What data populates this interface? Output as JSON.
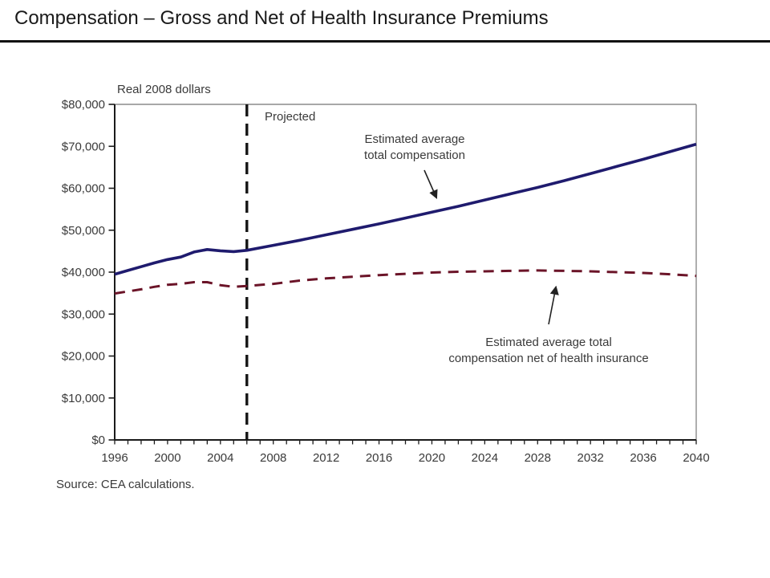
{
  "slide": {
    "title": "Compensation – Gross and Net of Health Insurance Premiums",
    "source_note": "Source: CEA calculations."
  },
  "chart_data": {
    "type": "line",
    "title": "Compensation – Gross and Net of Health Insurance Premiums",
    "unit_label": "Real 2008 dollars",
    "projected_label": "Projected",
    "projected_start_year": 2006,
    "x_range": [
      1996,
      2040
    ],
    "ylim": [
      0,
      80000
    ],
    "grid": false,
    "legend_position": "none",
    "x_tick_label_years": [
      1996,
      2000,
      2004,
      2008,
      2012,
      2016,
      2020,
      2024,
      2028,
      2032,
      2036,
      2040
    ],
    "y_ticks": [
      {
        "value": 0,
        "label": "$0"
      },
      {
        "value": 10000,
        "label": "$10,000"
      },
      {
        "value": 20000,
        "label": "$20,000"
      },
      {
        "value": 30000,
        "label": "$30,000"
      },
      {
        "value": 40000,
        "label": "$40,000"
      },
      {
        "value": 50000,
        "label": "$50,000"
      },
      {
        "value": 60000,
        "label": "$60,000"
      },
      {
        "value": 70000,
        "label": "$70,000"
      },
      {
        "value": 80000,
        "label": "$80,000"
      }
    ],
    "series": [
      {
        "name": "Estimated average total compensation",
        "style": "solid",
        "color": "#1f1b6e",
        "points": [
          [
            1996,
            39500
          ],
          [
            1997,
            40400
          ],
          [
            1998,
            41300
          ],
          [
            1999,
            42200
          ],
          [
            2000,
            43000
          ],
          [
            2001,
            43600
          ],
          [
            2002,
            44800
          ],
          [
            2003,
            45400
          ],
          [
            2004,
            45100
          ],
          [
            2005,
            44900
          ],
          [
            2006,
            45200
          ],
          [
            2008,
            46400
          ],
          [
            2010,
            47600
          ],
          [
            2012,
            48900
          ],
          [
            2014,
            50200
          ],
          [
            2016,
            51500
          ],
          [
            2018,
            52900
          ],
          [
            2020,
            54300
          ],
          [
            2022,
            55700
          ],
          [
            2024,
            57200
          ],
          [
            2026,
            58700
          ],
          [
            2028,
            60200
          ],
          [
            2030,
            61800
          ],
          [
            2032,
            63500
          ],
          [
            2034,
            65200
          ],
          [
            2036,
            66900
          ],
          [
            2038,
            68700
          ],
          [
            2040,
            70500
          ]
        ]
      },
      {
        "name": "Estimated average total compensation net of health insurance",
        "style": "dashed",
        "color": "#6b1428",
        "points": [
          [
            1996,
            34900
          ],
          [
            1997,
            35400
          ],
          [
            1998,
            35900
          ],
          [
            1999,
            36500
          ],
          [
            2000,
            37000
          ],
          [
            2001,
            37200
          ],
          [
            2002,
            37600
          ],
          [
            2003,
            37600
          ],
          [
            2004,
            36900
          ],
          [
            2005,
            36500
          ],
          [
            2006,
            36700
          ],
          [
            2008,
            37200
          ],
          [
            2010,
            38000
          ],
          [
            2012,
            38500
          ],
          [
            2014,
            38900
          ],
          [
            2016,
            39300
          ],
          [
            2018,
            39600
          ],
          [
            2020,
            39900
          ],
          [
            2022,
            40100
          ],
          [
            2024,
            40200
          ],
          [
            2026,
            40300
          ],
          [
            2028,
            40400
          ],
          [
            2030,
            40300
          ],
          [
            2032,
            40200
          ],
          [
            2034,
            40000
          ],
          [
            2036,
            39800
          ],
          [
            2038,
            39500
          ],
          [
            2040,
            39100
          ]
        ]
      }
    ],
    "annotations": [
      {
        "text": "Estimated average\ntotal compensation"
      },
      {
        "text": "Estimated average total\ncompensation net of health insurance"
      }
    ]
  },
  "colors": {
    "axis": "#1a1a1a",
    "frame_gray": "#8c8c8c",
    "divider": "#151515",
    "text": "#3a3a3a"
  }
}
